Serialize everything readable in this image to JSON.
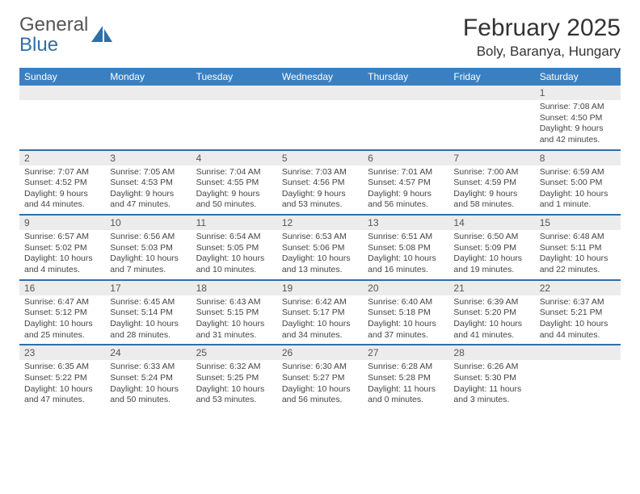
{
  "brand": {
    "word1": "General",
    "word2": "Blue"
  },
  "title": "February 2025",
  "location": "Boly, Baranya, Hungary",
  "colors": {
    "header_bg": "#3a80c1",
    "header_text": "#ffffff",
    "rule": "#2f6fa7",
    "daynum_bg": "#ececec",
    "text": "#444444",
    "brand_blue": "#2f6fa7"
  },
  "typography": {
    "title_fontsize": 30,
    "location_fontsize": 17,
    "dow_fontsize": 12,
    "daynum_fontsize": 12,
    "body_fontsize": 10.5
  },
  "days_of_week": [
    "Sunday",
    "Monday",
    "Tuesday",
    "Wednesday",
    "Thursday",
    "Friday",
    "Saturday"
  ],
  "weeks": [
    [
      {
        "n": "",
        "lines": []
      },
      {
        "n": "",
        "lines": []
      },
      {
        "n": "",
        "lines": []
      },
      {
        "n": "",
        "lines": []
      },
      {
        "n": "",
        "lines": []
      },
      {
        "n": "",
        "lines": []
      },
      {
        "n": "1",
        "lines": [
          "Sunrise: 7:08 AM",
          "Sunset: 4:50 PM",
          "Daylight: 9 hours and 42 minutes."
        ]
      }
    ],
    [
      {
        "n": "2",
        "lines": [
          "Sunrise: 7:07 AM",
          "Sunset: 4:52 PM",
          "Daylight: 9 hours and 44 minutes."
        ]
      },
      {
        "n": "3",
        "lines": [
          "Sunrise: 7:05 AM",
          "Sunset: 4:53 PM",
          "Daylight: 9 hours and 47 minutes."
        ]
      },
      {
        "n": "4",
        "lines": [
          "Sunrise: 7:04 AM",
          "Sunset: 4:55 PM",
          "Daylight: 9 hours and 50 minutes."
        ]
      },
      {
        "n": "5",
        "lines": [
          "Sunrise: 7:03 AM",
          "Sunset: 4:56 PM",
          "Daylight: 9 hours and 53 minutes."
        ]
      },
      {
        "n": "6",
        "lines": [
          "Sunrise: 7:01 AM",
          "Sunset: 4:57 PM",
          "Daylight: 9 hours and 56 minutes."
        ]
      },
      {
        "n": "7",
        "lines": [
          "Sunrise: 7:00 AM",
          "Sunset: 4:59 PM",
          "Daylight: 9 hours and 58 minutes."
        ]
      },
      {
        "n": "8",
        "lines": [
          "Sunrise: 6:59 AM",
          "Sunset: 5:00 PM",
          "Daylight: 10 hours and 1 minute."
        ]
      }
    ],
    [
      {
        "n": "9",
        "lines": [
          "Sunrise: 6:57 AM",
          "Sunset: 5:02 PM",
          "Daylight: 10 hours and 4 minutes."
        ]
      },
      {
        "n": "10",
        "lines": [
          "Sunrise: 6:56 AM",
          "Sunset: 5:03 PM",
          "Daylight: 10 hours and 7 minutes."
        ]
      },
      {
        "n": "11",
        "lines": [
          "Sunrise: 6:54 AM",
          "Sunset: 5:05 PM",
          "Daylight: 10 hours and 10 minutes."
        ]
      },
      {
        "n": "12",
        "lines": [
          "Sunrise: 6:53 AM",
          "Sunset: 5:06 PM",
          "Daylight: 10 hours and 13 minutes."
        ]
      },
      {
        "n": "13",
        "lines": [
          "Sunrise: 6:51 AM",
          "Sunset: 5:08 PM",
          "Daylight: 10 hours and 16 minutes."
        ]
      },
      {
        "n": "14",
        "lines": [
          "Sunrise: 6:50 AM",
          "Sunset: 5:09 PM",
          "Daylight: 10 hours and 19 minutes."
        ]
      },
      {
        "n": "15",
        "lines": [
          "Sunrise: 6:48 AM",
          "Sunset: 5:11 PM",
          "Daylight: 10 hours and 22 minutes."
        ]
      }
    ],
    [
      {
        "n": "16",
        "lines": [
          "Sunrise: 6:47 AM",
          "Sunset: 5:12 PM",
          "Daylight: 10 hours and 25 minutes."
        ]
      },
      {
        "n": "17",
        "lines": [
          "Sunrise: 6:45 AM",
          "Sunset: 5:14 PM",
          "Daylight: 10 hours and 28 minutes."
        ]
      },
      {
        "n": "18",
        "lines": [
          "Sunrise: 6:43 AM",
          "Sunset: 5:15 PM",
          "Daylight: 10 hours and 31 minutes."
        ]
      },
      {
        "n": "19",
        "lines": [
          "Sunrise: 6:42 AM",
          "Sunset: 5:17 PM",
          "Daylight: 10 hours and 34 minutes."
        ]
      },
      {
        "n": "20",
        "lines": [
          "Sunrise: 6:40 AM",
          "Sunset: 5:18 PM",
          "Daylight: 10 hours and 37 minutes."
        ]
      },
      {
        "n": "21",
        "lines": [
          "Sunrise: 6:39 AM",
          "Sunset: 5:20 PM",
          "Daylight: 10 hours and 41 minutes."
        ]
      },
      {
        "n": "22",
        "lines": [
          "Sunrise: 6:37 AM",
          "Sunset: 5:21 PM",
          "Daylight: 10 hours and 44 minutes."
        ]
      }
    ],
    [
      {
        "n": "23",
        "lines": [
          "Sunrise: 6:35 AM",
          "Sunset: 5:22 PM",
          "Daylight: 10 hours and 47 minutes."
        ]
      },
      {
        "n": "24",
        "lines": [
          "Sunrise: 6:33 AM",
          "Sunset: 5:24 PM",
          "Daylight: 10 hours and 50 minutes."
        ]
      },
      {
        "n": "25",
        "lines": [
          "Sunrise: 6:32 AM",
          "Sunset: 5:25 PM",
          "Daylight: 10 hours and 53 minutes."
        ]
      },
      {
        "n": "26",
        "lines": [
          "Sunrise: 6:30 AM",
          "Sunset: 5:27 PM",
          "Daylight: 10 hours and 56 minutes."
        ]
      },
      {
        "n": "27",
        "lines": [
          "Sunrise: 6:28 AM",
          "Sunset: 5:28 PM",
          "Daylight: 11 hours and 0 minutes."
        ]
      },
      {
        "n": "28",
        "lines": [
          "Sunrise: 6:26 AM",
          "Sunset: 5:30 PM",
          "Daylight: 11 hours and 3 minutes."
        ]
      },
      {
        "n": "",
        "lines": []
      }
    ]
  ]
}
